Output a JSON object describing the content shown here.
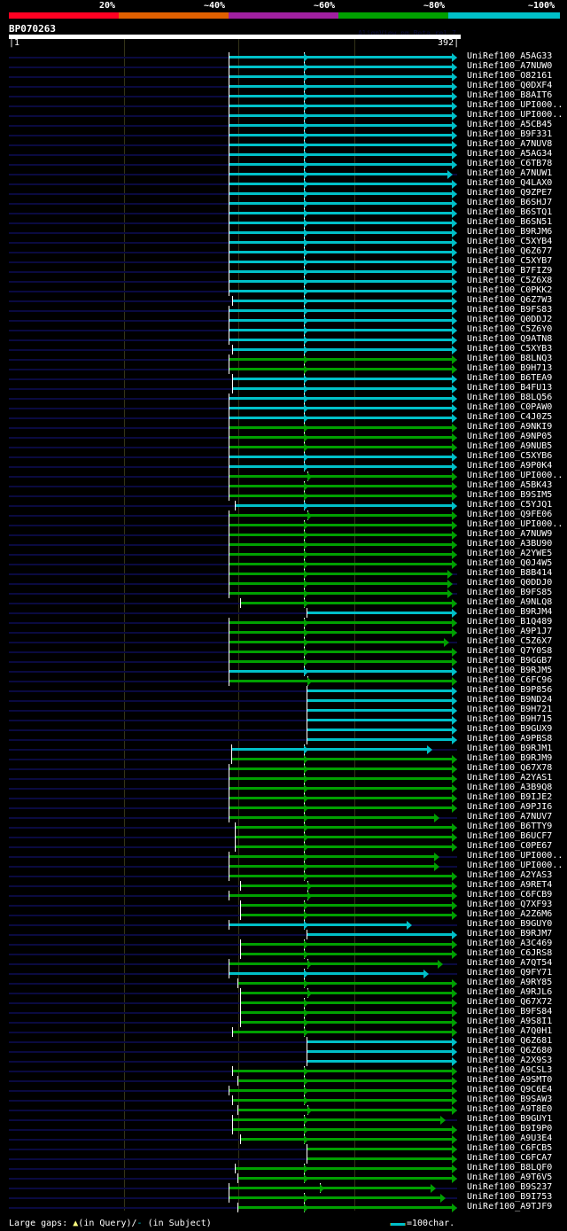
{
  "scale": {
    "labels": [
      "20%",
      "~40%",
      "~60%",
      "~80%",
      "~100%"
    ],
    "colors": [
      "#ff0022",
      "#e06000",
      "#a020a0",
      "#00a000",
      "#00c0c8"
    ]
  },
  "query": {
    "name": "BP070263",
    "start": "1",
    "end": "392",
    "length": 392
  },
  "aligner": "AlignView.pm Beta rel.7",
  "colors": {
    "cyan": "#00c0c8",
    "green": "#00a000",
    "track": "#0a0a40"
  },
  "hits": [
    [
      "UniRef100_A5AG33",
      "cyan",
      193,
      390,
      260
    ],
    [
      "UniRef100_A7NUW0",
      "cyan",
      193,
      390,
      260
    ],
    [
      "UniRef100_O82161",
      "cyan",
      193,
      390,
      260
    ],
    [
      "UniRef100_Q0DXF4",
      "cyan",
      193,
      390,
      260
    ],
    [
      "UniRef100_B8AIT6",
      "cyan",
      193,
      390,
      260
    ],
    [
      "UniRef100_UPI000..",
      "cyan",
      193,
      390,
      260
    ],
    [
      "UniRef100_UPI000..",
      "cyan",
      193,
      390,
      260
    ],
    [
      "UniRef100_A5CB45",
      "cyan",
      193,
      390,
      260
    ],
    [
      "UniRef100_B9F331",
      "cyan",
      193,
      390,
      260
    ],
    [
      "UniRef100_A7NUV8",
      "cyan",
      193,
      390,
      260
    ],
    [
      "UniRef100_A5AG34",
      "cyan",
      193,
      390,
      260
    ],
    [
      "UniRef100_C6TB78",
      "cyan",
      193,
      390,
      260
    ],
    [
      "UniRef100_A7NUW1",
      "cyan",
      193,
      386,
      260
    ],
    [
      "UniRef100_Q4LAX0",
      "cyan",
      193,
      390,
      260
    ],
    [
      "UniRef100_Q9ZPE7",
      "cyan",
      193,
      390,
      260
    ],
    [
      "UniRef100_B6SHJ7",
      "cyan",
      193,
      390,
      260
    ],
    [
      "UniRef100_B6STQ1",
      "cyan",
      193,
      390,
      260
    ],
    [
      "UniRef100_B6SN51",
      "cyan",
      193,
      390,
      260
    ],
    [
      "UniRef100_B9RJM6",
      "cyan",
      193,
      390,
      260
    ],
    [
      "UniRef100_C5XYB4",
      "cyan",
      193,
      390,
      260
    ],
    [
      "UniRef100_Q6Z677",
      "cyan",
      193,
      390,
      260
    ],
    [
      "UniRef100_C5XYB7",
      "cyan",
      193,
      390,
      260
    ],
    [
      "UniRef100_B7FIZ9",
      "cyan",
      193,
      390,
      260
    ],
    [
      "UniRef100_C5Z6X8",
      "cyan",
      193,
      390,
      260
    ],
    [
      "UniRef100_C0PKK2",
      "cyan",
      193,
      390,
      260
    ],
    [
      "UniRef100_Q6Z7W3",
      "cyan",
      196,
      390,
      260
    ],
    [
      "UniRef100_B9FS83",
      "cyan",
      193,
      390,
      260
    ],
    [
      "UniRef100_Q0DDJ2",
      "cyan",
      193,
      390,
      260
    ],
    [
      "UniRef100_C5Z6Y0",
      "cyan",
      193,
      390,
      260
    ],
    [
      "UniRef100_Q9ATN8",
      "cyan",
      193,
      390,
      260
    ],
    [
      "UniRef100_C5XYB3",
      "cyan",
      196,
      390,
      260
    ],
    [
      "UniRef100_B8LNQ3",
      "green",
      193,
      390,
      260
    ],
    [
      "UniRef100_B9H713",
      "green",
      193,
      390,
      260
    ],
    [
      "UniRef100_B6TEA9",
      "cyan",
      196,
      390,
      260
    ],
    [
      "UniRef100_B4FU13",
      "cyan",
      196,
      390,
      260
    ],
    [
      "UniRef100_B8LQ56",
      "cyan",
      193,
      390,
      260
    ],
    [
      "UniRef100_C0PAW0",
      "cyan",
      193,
      390,
      260
    ],
    [
      "UniRef100_C4J0Z5",
      "cyan",
      193,
      390,
      260
    ],
    [
      "UniRef100_A9NKI9",
      "green",
      193,
      390,
      260
    ],
    [
      "UniRef100_A9NP05",
      "green",
      193,
      390,
      260
    ],
    [
      "UniRef100_A9NUB5",
      "green",
      193,
      390,
      260
    ],
    [
      "UniRef100_C5XYB6",
      "cyan",
      193,
      390,
      260
    ],
    [
      "UniRef100_A9P0K4",
      "cyan",
      193,
      390,
      260
    ],
    [
      "UniRef100_UPI000..",
      "green",
      193,
      390,
      263
    ],
    [
      "UniRef100_A5BK43",
      "green",
      193,
      390,
      260
    ],
    [
      "UniRef100_B9SIM5",
      "green",
      193,
      390,
      260
    ],
    [
      "UniRef100_C5YJQ1",
      "cyan",
      198,
      390,
      260
    ],
    [
      "UniRef100_Q9FE06",
      "green",
      193,
      390,
      263
    ],
    [
      "UniRef100_UPI000..",
      "green",
      193,
      390,
      260
    ],
    [
      "UniRef100_A7NUW9",
      "green",
      193,
      390,
      260
    ],
    [
      "UniRef100_A3BU90",
      "green",
      193,
      390,
      260
    ],
    [
      "UniRef100_A2YWE5",
      "green",
      193,
      390,
      260
    ],
    [
      "UniRef100_Q0J4W5",
      "green",
      193,
      390,
      260
    ],
    [
      "UniRef100_B8B414",
      "green",
      193,
      386,
      260
    ],
    [
      "UniRef100_Q0DDJ0",
      "green",
      193,
      386,
      260
    ],
    [
      "UniRef100_B9FS85",
      "green",
      193,
      386,
      260
    ],
    [
      "UniRef100_A9NLQ8",
      "green",
      203,
      390,
      260
    ],
    [
      "UniRef100_B9RJM4",
      "cyan",
      261,
      390,
      null
    ],
    [
      "UniRef100_B1Q489",
      "green",
      193,
      390,
      260
    ],
    [
      "UniRef100_A9P1J7",
      "green",
      193,
      390,
      260
    ],
    [
      "UniRef100_C5Z6X7",
      "green",
      193,
      383,
      260
    ],
    [
      "UniRef100_Q7Y0S8",
      "green",
      193,
      390,
      260
    ],
    [
      "UniRef100_B9GGB7",
      "green",
      193,
      390,
      260
    ],
    [
      "UniRef100_B9RJM5",
      "cyan",
      193,
      390,
      260
    ],
    [
      "UniRef100_C6FC96",
      "green",
      193,
      390,
      263
    ],
    [
      "UniRef100_B9P856",
      "cyan",
      261,
      390,
      null
    ],
    [
      "UniRef100_B9ND24",
      "cyan",
      261,
      390,
      null
    ],
    [
      "UniRef100_B9H721",
      "cyan",
      261,
      390,
      null
    ],
    [
      "UniRef100_B9H715",
      "cyan",
      261,
      390,
      null
    ],
    [
      "UniRef100_B9GUX9",
      "cyan",
      261,
      390,
      null
    ],
    [
      "UniRef100_A9PBS8",
      "cyan",
      261,
      390,
      null
    ],
    [
      "UniRef100_B9RJM1",
      "cyan",
      195,
      368,
      260
    ],
    [
      "UniRef100_B9RJM9",
      "green",
      195,
      390,
      260
    ],
    [
      "UniRef100_Q67X78",
      "green",
      193,
      390,
      260
    ],
    [
      "UniRef100_A2YAS1",
      "green",
      193,
      390,
      260
    ],
    [
      "UniRef100_A3B9Q8",
      "green",
      193,
      390,
      260
    ],
    [
      "UniRef100_B9IJE2",
      "green",
      193,
      390,
      260
    ],
    [
      "UniRef100_A9PJI6",
      "green",
      193,
      390,
      260
    ],
    [
      "UniRef100_A7NUV7",
      "green",
      193,
      374,
      260
    ],
    [
      "UniRef100_B6TTY9",
      "green",
      198,
      390,
      260
    ],
    [
      "UniRef100_B6UCF7",
      "green",
      198,
      390,
      260
    ],
    [
      "UniRef100_C0PE67",
      "green",
      198,
      390,
      260
    ],
    [
      "UniRef100_UPI000..",
      "green",
      193,
      374,
      260
    ],
    [
      "UniRef100_UPI000..",
      "green",
      193,
      374,
      260
    ],
    [
      "UniRef100_A2YAS3",
      "green",
      193,
      390,
      260
    ],
    [
      "UniRef100_A9RET4",
      "green",
      203,
      390,
      263
    ],
    [
      "UniRef100_C6FCB9",
      "green",
      193,
      390,
      263
    ],
    [
      "UniRef100_Q7XF93",
      "green",
      203,
      390,
      260
    ],
    [
      "UniRef100_A2Z6M6",
      "green",
      203,
      390,
      260
    ],
    [
      "UniRef100_B9GUY0",
      "cyan",
      193,
      350,
      260
    ],
    [
      "UniRef100_B9RJM7",
      "cyan",
      261,
      390,
      null
    ],
    [
      "UniRef100_A3C469",
      "green",
      203,
      390,
      260
    ],
    [
      "UniRef100_C6JRS8",
      "green",
      203,
      390,
      260
    ],
    [
      "UniRef100_A7QT54",
      "green",
      193,
      377,
      263
    ],
    [
      "UniRef100_Q9FY71",
      "cyan",
      193,
      365,
      260
    ],
    [
      "UniRef100_A9RY85",
      "green",
      200,
      390,
      260
    ],
    [
      "UniRef100_A9RJL6",
      "green",
      203,
      390,
      263
    ],
    [
      "UniRef100_Q67X72",
      "green",
      203,
      390,
      260
    ],
    [
      "UniRef100_B9FS84",
      "green",
      203,
      390,
      260
    ],
    [
      "UniRef100_A9S8I1",
      "green",
      203,
      390,
      260
    ],
    [
      "UniRef100_A7Q0H1",
      "green",
      196,
      390,
      260
    ],
    [
      "UniRef100_Q6Z681",
      "cyan",
      261,
      390,
      null
    ],
    [
      "UniRef100_Q6Z680",
      "cyan",
      261,
      390,
      null
    ],
    [
      "UniRef100_A2X9S3",
      "cyan",
      261,
      390,
      null
    ],
    [
      "UniRef100_A9CSL3",
      "green",
      196,
      390,
      260
    ],
    [
      "UniRef100_A9SMT0",
      "green",
      200,
      390,
      260
    ],
    [
      "UniRef100_Q9C6E4",
      "green",
      193,
      390,
      260
    ],
    [
      "UniRef100_B9SAW3",
      "green",
      196,
      390,
      260
    ],
    [
      "UniRef100_A9T8E0",
      "green",
      200,
      390,
      263
    ],
    [
      "UniRef100_B9GUY1",
      "green",
      196,
      380,
      260
    ],
    [
      "UniRef100_B9I9P0",
      "green",
      196,
      390,
      260
    ],
    [
      "UniRef100_A9U3E4",
      "green",
      203,
      390,
      260
    ],
    [
      "UniRef100_C6FCB5",
      "green",
      261,
      390,
      null
    ],
    [
      "UniRef100_C6FCA7",
      "green",
      261,
      390,
      null
    ],
    [
      "UniRef100_B8LQF0",
      "green",
      198,
      390,
      260
    ],
    [
      "UniRef100_A9T6V5",
      "green",
      200,
      390,
      260
    ],
    [
      "UniRef100_B9S237",
      "green",
      193,
      371,
      274
    ],
    [
      "UniRef100_B9I753",
      "green",
      193,
      380,
      260
    ],
    [
      "UniRef100_A9TJF9",
      "green",
      200,
      390,
      260
    ]
  ],
  "footer": {
    "gaps_label": "Large gaps:",
    "query_gap_symbol": "▲",
    "query_gap_text": "(in Query)/",
    "subject_gap_symbol": "-",
    "subject_gap_text": " (in Subject)",
    "scale_text": "=100char."
  }
}
